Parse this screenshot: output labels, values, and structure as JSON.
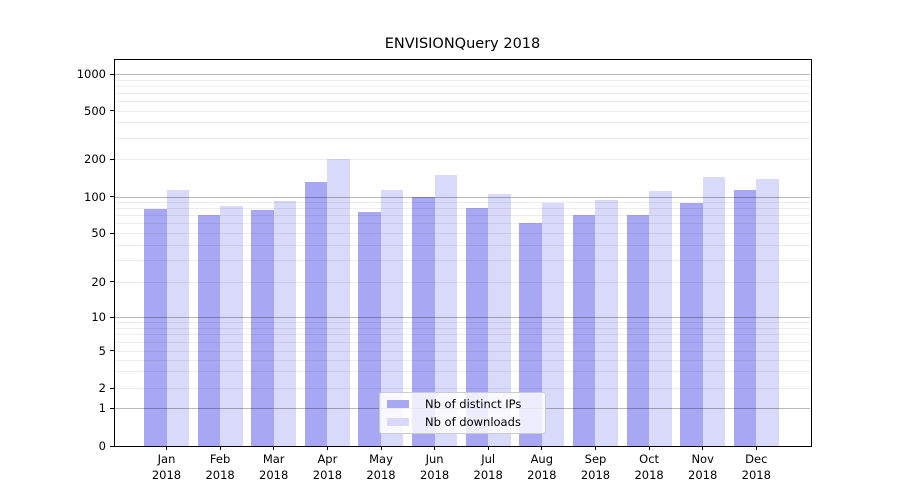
{
  "chart_data": {
    "type": "bar",
    "title": "ENVISIONQuery 2018",
    "yscale": "symlog",
    "grid": "major and minor horizontal gridlines, drawn above bars",
    "categories": [
      "Jan",
      "Feb",
      "Mar",
      "Apr",
      "May",
      "Jun",
      "Jul",
      "Aug",
      "Sep",
      "Oct",
      "Nov",
      "Dec"
    ],
    "year_label": "2018",
    "y_ticks": [
      0,
      1,
      2,
      5,
      10,
      20,
      50,
      100,
      200,
      500,
      1000
    ],
    "ylim": [
      0,
      1300
    ],
    "legend_position": "inside plot, bottom center",
    "series": [
      {
        "name": "Nb of distinct IPs",
        "color": "#a7a7f4",
        "values": [
          79,
          70,
          78,
          130,
          75,
          100,
          80,
          61,
          70,
          70,
          88,
          112
        ]
      },
      {
        "name": "Nb of downloads",
        "color": "#d9d9f9",
        "values": [
          113,
          83,
          92,
          200,
          113,
          150,
          105,
          88,
          93,
          111,
          143,
          139
        ]
      }
    ]
  },
  "legend": {
    "items": [
      {
        "label": "Nb of distinct IPs"
      },
      {
        "label": "Nb of downloads"
      }
    ]
  }
}
